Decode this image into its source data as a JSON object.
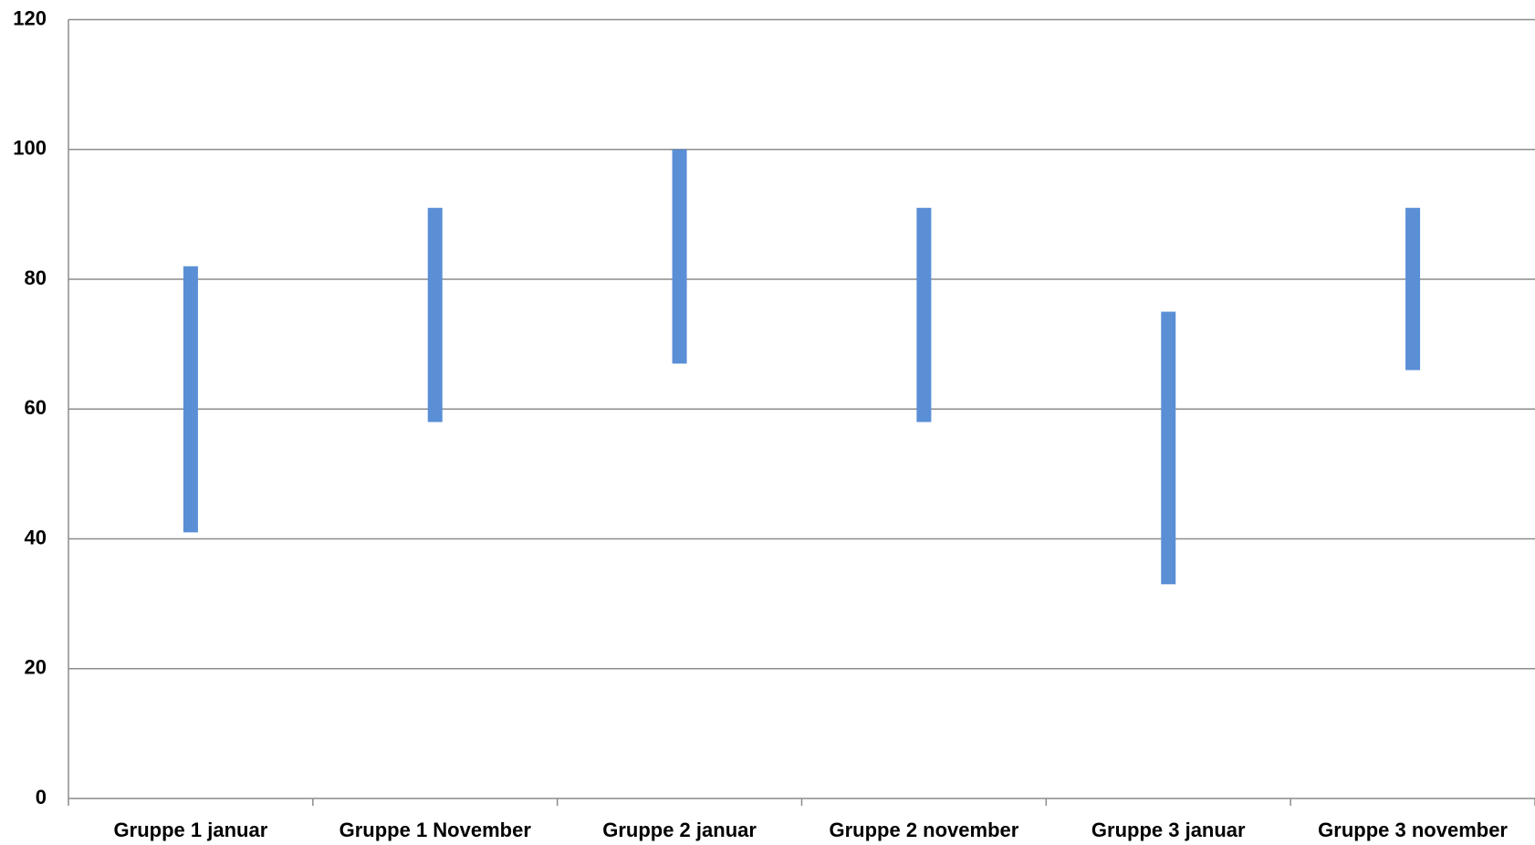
{
  "chart_data": {
    "type": "range",
    "categories": [
      "Gruppe 1 januar",
      "Gruppe 1 November",
      "Gruppe 2 januar",
      "Gruppe 2 november",
      "Gruppe 3 januar",
      "Gruppe 3 november"
    ],
    "low": [
      41,
      58,
      67,
      58,
      33,
      66
    ],
    "high": [
      82,
      91,
      100,
      91,
      75,
      91
    ],
    "color": "#5a8fd6",
    "ylim": [
      0,
      120
    ],
    "yticks": [
      0,
      20,
      40,
      60,
      80,
      100,
      120
    ],
    "grid": true
  }
}
